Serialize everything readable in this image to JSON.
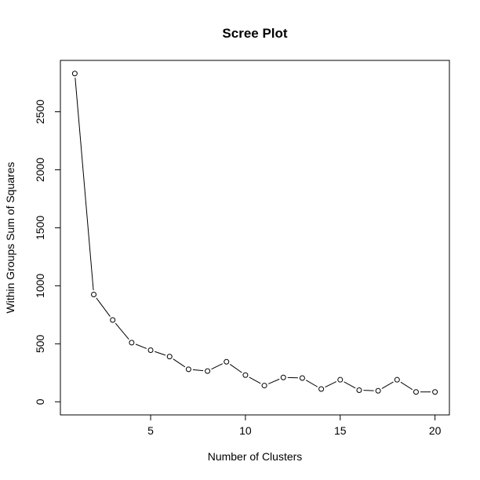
{
  "chart_data": {
    "type": "line",
    "title": "Scree Plot",
    "xlabel": "Number of Clusters",
    "ylabel": "Within Groups Sum of Squares",
    "x": [
      1,
      2,
      3,
      4,
      5,
      6,
      7,
      8,
      9,
      10,
      11,
      12,
      13,
      14,
      15,
      16,
      17,
      18,
      19,
      20
    ],
    "y": [
      2830,
      925,
      705,
      510,
      445,
      390,
      280,
      265,
      345,
      230,
      140,
      210,
      205,
      110,
      190,
      100,
      95,
      190,
      85,
      85
    ],
    "xlim": [
      0.24,
      20.76
    ],
    "ylim": [
      -113,
      2943
    ],
    "xticks": [
      5,
      10,
      15,
      20
    ],
    "xtick_labels": [
      "5",
      "10",
      "15",
      "20"
    ],
    "yticks": [
      0,
      500,
      1000,
      1500,
      2000,
      2500
    ],
    "ytick_labels": [
      "0",
      "500",
      "1000",
      "1500",
      "2000",
      "2500"
    ],
    "marker": "open-circle",
    "line_style": "line-with-gaps",
    "grid": false,
    "legend": "none"
  }
}
